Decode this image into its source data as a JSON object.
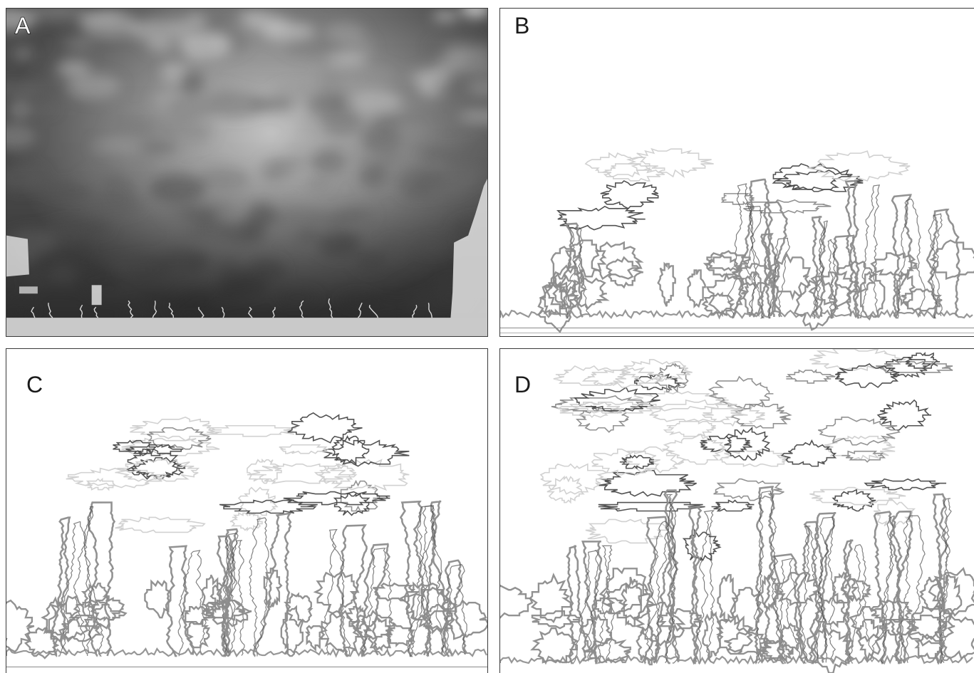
{
  "panels": [
    {
      "id": "A",
      "label": "A",
      "content": "grayscale-blurred-image"
    },
    {
      "id": "B",
      "label": "B",
      "content": "contour-outline"
    },
    {
      "id": "C",
      "label": "C",
      "content": "contour-outline"
    },
    {
      "id": "D",
      "label": "D",
      "content": "contour-outline"
    }
  ],
  "colors": {
    "border": "#3a3a3a",
    "contour_dark": "#4a4a4a",
    "contour_mid": "#8c8c8c",
    "contour_light": "#cfcfcf",
    "image_base": "#555555"
  }
}
